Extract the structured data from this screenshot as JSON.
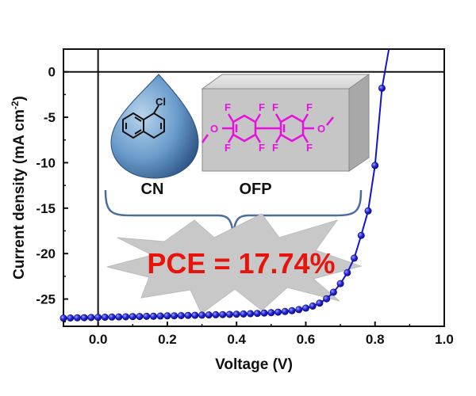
{
  "chart_data": {
    "type": "line",
    "xlabel": "Voltage (V)",
    "ylabel_main": "Current density (mA cm",
    "ylabel_sup": "-2",
    "ylabel_end": ")",
    "xlim": [
      -0.1,
      1.0
    ],
    "ylim": [
      -28,
      2.5
    ],
    "xticks": [
      0.0,
      0.2,
      0.4,
      0.6,
      0.8,
      1.0
    ],
    "xtick_labels": [
      "0.0",
      "0.2",
      "0.4",
      "0.6",
      "0.8",
      "1.0"
    ],
    "yticks": [
      0,
      -5,
      -10,
      -15,
      -20,
      -25
    ],
    "ytick_labels": [
      "0",
      "-5",
      "-10",
      "-15",
      "-20",
      "-25"
    ],
    "grid": false,
    "zero_lines": true,
    "series": [
      {
        "color": "#1515c8",
        "x": [
          -0.1,
          -0.08,
          -0.06,
          -0.04,
          -0.02,
          0.0,
          0.02,
          0.04,
          0.06,
          0.08,
          0.1,
          0.12,
          0.14,
          0.16,
          0.18,
          0.2,
          0.22,
          0.24,
          0.26,
          0.28,
          0.3,
          0.32,
          0.34,
          0.36,
          0.38,
          0.4,
          0.42,
          0.44,
          0.46,
          0.48,
          0.5,
          0.52,
          0.54,
          0.56,
          0.58,
          0.6,
          0.62,
          0.64,
          0.66,
          0.68,
          0.7,
          0.72,
          0.74,
          0.76,
          0.78,
          0.8,
          0.82,
          0.84
        ],
        "y": [
          -27.1,
          -27.08,
          -27.06,
          -27.05,
          -27.03,
          -27.01,
          -27.0,
          -26.98,
          -26.97,
          -26.95,
          -26.93,
          -26.92,
          -26.9,
          -26.89,
          -26.87,
          -26.85,
          -26.84,
          -26.82,
          -26.8,
          -26.79,
          -26.77,
          -26.75,
          -26.73,
          -26.71,
          -26.69,
          -26.67,
          -26.64,
          -26.61,
          -26.58,
          -26.54,
          -26.5,
          -26.44,
          -26.37,
          -26.28,
          -26.16,
          -26.0,
          -25.77,
          -25.45,
          -24.97,
          -24.25,
          -23.3,
          -22.1,
          -20.5,
          -18.0,
          -15.3,
          -10.3,
          -1.8,
          2.5
        ],
        "markers": true
      }
    ],
    "annotations": {
      "cn_label": "CN",
      "ofp_label": "OFP",
      "pce_text": "PCE = 17.74%",
      "pce_color": "#e8140c",
      "molecule_color": "#e810e0",
      "atom_cl": "Cl",
      "atom_f": "F",
      "atom_o": "O"
    }
  }
}
